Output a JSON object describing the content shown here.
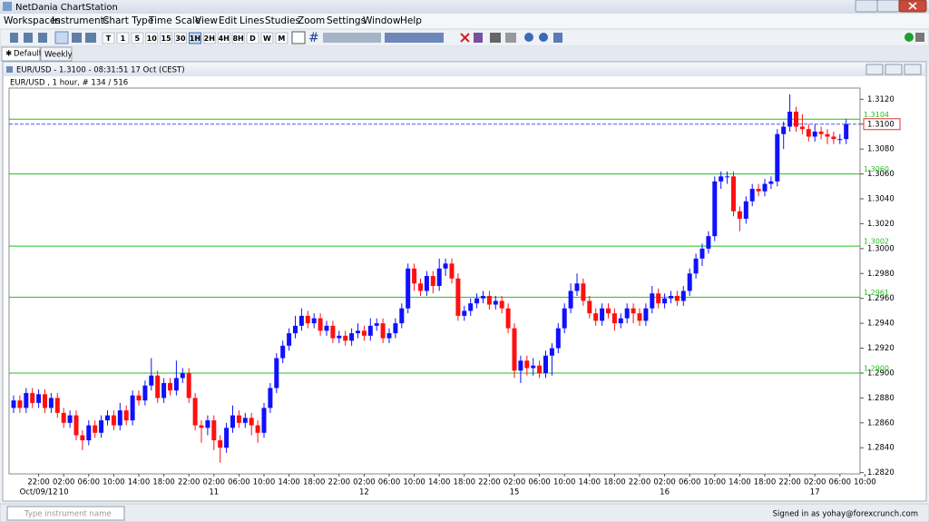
{
  "window": {
    "title": "NetDania ChartStation"
  },
  "menu": [
    "Workspaces",
    "Instruments",
    "Chart Type",
    "Time Scale",
    "View",
    "Edit",
    "Lines",
    "Studies",
    "Zoom",
    "Settings",
    "Window",
    "Help"
  ],
  "timeframes": [
    "T",
    "1",
    "5",
    "10",
    "15",
    "30",
    "1H",
    "2H",
    "4H",
    "8H",
    "D",
    "W",
    "M"
  ],
  "tabs": [
    "Default",
    "Weekly"
  ],
  "chart_window": {
    "title": "EUR/USD - 1.3100 - 08:31:51  17 Oct (CEST)"
  },
  "status": {
    "search_placeholder": "Type instrument name",
    "signed_in": "Signed in as yohay@forexcrunch.com"
  },
  "chart_data": {
    "type": "candlestick",
    "title": "EUR/USD , 1 hour, # 134 / 516",
    "up_color": "#1010ff",
    "down_color": "#ff1010",
    "line_color": "#22c022",
    "current_color": "#5050ff",
    "ylim": [
      1.2819,
      1.3129
    ],
    "yticks": [
      {
        "value": 1.282,
        "label": "1.2820"
      },
      {
        "value": 1.284,
        "label": "1.2840"
      },
      {
        "value": 1.286,
        "label": "1.2860"
      },
      {
        "value": 1.288,
        "label": "1.2880"
      },
      {
        "value": 1.29,
        "label": "1.2900"
      },
      {
        "value": 1.292,
        "label": "1.2920"
      },
      {
        "value": 1.294,
        "label": "1.2940"
      },
      {
        "value": 1.296,
        "label": "1.2960"
      },
      {
        "value": 1.298,
        "label": "1.2980"
      },
      {
        "value": 1.3,
        "label": "1.3000"
      },
      {
        "value": 1.302,
        "label": "1.3020"
      },
      {
        "value": 1.304,
        "label": "1.3040"
      },
      {
        "value": 1.306,
        "label": "1.3060"
      },
      {
        "value": 1.308,
        "label": "1.3080"
      },
      {
        "value": 1.31,
        "label": "1.3100"
      },
      {
        "value": 1.312,
        "label": "1.3120"
      }
    ],
    "levels": [
      1.3104,
      {
        "value": 1.306,
        "label": "1.3060"
      },
      1.3002,
      1.2961,
      {
        "value": 1.29,
        "label": "1.2900"
      }
    ],
    "current": {
      "value": 1.31,
      "label": "1.3100"
    },
    "xticks": [
      {
        "value": 4,
        "label": "22:00"
      },
      {
        "value": 8,
        "label": "02:00"
      },
      {
        "value": 12,
        "label": "06:00"
      },
      {
        "value": 16,
        "label": "10:00"
      },
      {
        "value": 20,
        "label": "14:00"
      },
      {
        "value": 24,
        "label": "18:00"
      },
      {
        "value": 28,
        "label": "22:00"
      },
      {
        "value": 32,
        "label": "02:00"
      },
      {
        "value": 36,
        "label": "06:00"
      },
      {
        "value": 40,
        "label": "10:00"
      },
      {
        "value": 44,
        "label": "14:00"
      },
      {
        "value": 48,
        "label": "18:00"
      },
      {
        "value": 52,
        "label": "22:00"
      },
      {
        "value": 56,
        "label": "02:00"
      },
      {
        "value": 60,
        "label": "06:00"
      },
      {
        "value": 64,
        "label": "10:00"
      },
      {
        "value": 68,
        "label": "14:00"
      },
      {
        "value": 72,
        "label": "18:00"
      },
      {
        "value": 76,
        "label": "22:00"
      },
      {
        "value": 80,
        "label": "02:00"
      },
      {
        "value": 84,
        "label": "06:00"
      },
      {
        "value": 88,
        "label": "10:00"
      },
      {
        "value": 92,
        "label": "14:00"
      },
      {
        "value": 96,
        "label": "18:00"
      },
      {
        "value": 100,
        "label": "22:00"
      },
      {
        "value": 104,
        "label": "02:00"
      },
      {
        "value": 108,
        "label": "06:00"
      },
      {
        "value": 112,
        "label": "10:00"
      },
      {
        "value": 116,
        "label": "14:00"
      },
      {
        "value": 120,
        "label": "18:00"
      },
      {
        "value": 124,
        "label": "22:00"
      },
      {
        "value": 128,
        "label": "02:00"
      },
      {
        "value": 132,
        "label": "06:00"
      },
      {
        "value": 136,
        "label": "10:00"
      }
    ],
    "date_ticks": [
      {
        "value": 4,
        "label": "Oct/09/12"
      },
      {
        "value": 8,
        "label": "10"
      },
      {
        "value": 32,
        "label": "11"
      },
      {
        "value": 56,
        "label": "12"
      },
      {
        "value": 80,
        "label": "15"
      },
      {
        "value": 104,
        "label": "16"
      },
      {
        "value": 128,
        "label": "17"
      }
    ],
    "candles": [
      [
        1.2872,
        1.2882,
        1.2868,
        1.2878
      ],
      [
        1.2878,
        1.2882,
        1.2868,
        1.2872
      ],
      [
        1.2872,
        1.2888,
        1.2868,
        1.2884
      ],
      [
        1.2884,
        1.2888,
        1.2872,
        1.2876
      ],
      [
        1.2876,
        1.2887,
        1.2872,
        1.2883
      ],
      [
        1.2883,
        1.2887,
        1.2868,
        1.2872
      ],
      [
        1.2872,
        1.2884,
        1.2868,
        1.288
      ],
      [
        1.288,
        1.2884,
        1.2864,
        1.2868
      ],
      [
        1.2868,
        1.2872,
        1.2856,
        1.286
      ],
      [
        1.286,
        1.287,
        1.2856,
        1.2866
      ],
      [
        1.2866,
        1.287,
        1.2846,
        1.285
      ],
      [
        1.285,
        1.2854,
        1.2838,
        1.2846
      ],
      [
        1.2846,
        1.2862,
        1.2842,
        1.2858
      ],
      [
        1.2858,
        1.2862,
        1.2848,
        1.2852
      ],
      [
        1.2852,
        1.2866,
        1.2848,
        1.2862
      ],
      [
        1.2862,
        1.287,
        1.2858,
        1.2866
      ],
      [
        1.2866,
        1.287,
        1.2854,
        1.2858
      ],
      [
        1.2858,
        1.2876,
        1.2854,
        1.287
      ],
      [
        1.287,
        1.2874,
        1.2858,
        1.2862
      ],
      [
        1.2862,
        1.2886,
        1.2858,
        1.2882
      ],
      [
        1.2882,
        1.2886,
        1.2874,
        1.2878
      ],
      [
        1.2878,
        1.2894,
        1.2874,
        1.289
      ],
      [
        1.289,
        1.2912,
        1.2886,
        1.2898
      ],
      [
        1.2898,
        1.2902,
        1.2876,
        1.288
      ],
      [
        1.288,
        1.2896,
        1.2876,
        1.2892
      ],
      [
        1.2892,
        1.2896,
        1.2882,
        1.2886
      ],
      [
        1.2886,
        1.291,
        1.2882,
        1.2896
      ],
      [
        1.2896,
        1.2904,
        1.2892,
        1.29
      ],
      [
        1.29,
        1.2904,
        1.2876,
        1.288
      ],
      [
        1.288,
        1.2884,
        1.2854,
        1.2858
      ],
      [
        1.2858,
        1.2862,
        1.2844,
        1.2856
      ],
      [
        1.2856,
        1.2866,
        1.285,
        1.2862
      ],
      [
        1.2862,
        1.2866,
        1.2838,
        1.2846
      ],
      [
        1.2846,
        1.285,
        1.2828,
        1.284
      ],
      [
        1.284,
        1.286,
        1.2836,
        1.2856
      ],
      [
        1.2856,
        1.2874,
        1.2852,
        1.2866
      ],
      [
        1.2866,
        1.287,
        1.2856,
        1.286
      ],
      [
        1.286,
        1.2868,
        1.2856,
        1.2864
      ],
      [
        1.2864,
        1.2868,
        1.285,
        1.2858
      ],
      [
        1.2858,
        1.2862,
        1.2844,
        1.2852
      ],
      [
        1.2852,
        1.2876,
        1.2848,
        1.2872
      ],
      [
        1.2872,
        1.2892,
        1.2868,
        1.2888
      ],
      [
        1.2888,
        1.2916,
        1.2884,
        1.2912
      ],
      [
        1.2912,
        1.2926,
        1.2908,
        1.2922
      ],
      [
        1.2922,
        1.2936,
        1.2918,
        1.2932
      ],
      [
        1.2932,
        1.2946,
        1.2928,
        1.2938
      ],
      [
        1.2938,
        1.2952,
        1.2934,
        1.2946
      ],
      [
        1.2946,
        1.295,
        1.2936,
        1.294
      ],
      [
        1.294,
        1.2948,
        1.2936,
        1.2944
      ],
      [
        1.2944,
        1.2948,
        1.293,
        1.2934
      ],
      [
        1.2934,
        1.2942,
        1.293,
        1.2938
      ],
      [
        1.2938,
        1.2942,
        1.2924,
        1.2928
      ],
      [
        1.2928,
        1.2934,
        1.2924,
        1.293
      ],
      [
        1.293,
        1.2934,
        1.2922,
        1.2926
      ],
      [
        1.2926,
        1.2936,
        1.2922,
        1.2932
      ],
      [
        1.2932,
        1.294,
        1.2928,
        1.2934
      ],
      [
        1.2934,
        1.2938,
        1.2926,
        1.293
      ],
      [
        1.293,
        1.2944,
        1.2926,
        1.2938
      ],
      [
        1.2938,
        1.2944,
        1.2934,
        1.294
      ],
      [
        1.294,
        1.2944,
        1.2924,
        1.2928
      ],
      [
        1.2928,
        1.2936,
        1.2924,
        1.2932
      ],
      [
        1.2932,
        1.2944,
        1.2928,
        1.294
      ],
      [
        1.294,
        1.2956,
        1.2936,
        1.2952
      ],
      [
        1.2952,
        1.2988,
        1.2948,
        1.2984
      ],
      [
        1.2984,
        1.2988,
        1.2966,
        1.2972
      ],
      [
        1.2972,
        1.2976,
        1.2962,
        1.2966
      ],
      [
        1.2966,
        1.2982,
        1.2962,
        1.2978
      ],
      [
        1.2978,
        1.2982,
        1.2964,
        1.297
      ],
      [
        1.297,
        1.2992,
        1.2966,
        1.2984
      ],
      [
        1.2984,
        1.2992,
        1.2978,
        1.2988
      ],
      [
        1.2988,
        1.2992,
        1.2972,
        1.2976
      ],
      [
        1.2976,
        1.298,
        1.2942,
        1.2946
      ],
      [
        1.2946,
        1.2954,
        1.2942,
        1.295
      ],
      [
        1.295,
        1.296,
        1.2946,
        1.2956
      ],
      [
        1.2956,
        1.2964,
        1.2952,
        1.296
      ],
      [
        1.296,
        1.2966,
        1.2956,
        1.2962
      ],
      [
        1.2962,
        1.2966,
        1.2951,
        1.2955
      ],
      [
        1.2955,
        1.2962,
        1.2951,
        1.2958
      ],
      [
        1.2958,
        1.2962,
        1.2948,
        1.2952
      ],
      [
        1.2952,
        1.2956,
        1.2932,
        1.2936
      ],
      [
        1.2936,
        1.294,
        1.2896,
        1.2902
      ],
      [
        1.2902,
        1.2914,
        1.2892,
        1.291
      ],
      [
        1.291,
        1.2914,
        1.2898,
        1.2904
      ],
      [
        1.2904,
        1.2912,
        1.2898,
        1.2906
      ],
      [
        1.2906,
        1.291,
        1.2896,
        1.29
      ],
      [
        1.29,
        1.2918,
        1.2896,
        1.2914
      ],
      [
        1.2914,
        1.2924,
        1.2898,
        1.292
      ],
      [
        1.292,
        1.294,
        1.2916,
        1.2936
      ],
      [
        1.2936,
        1.2956,
        1.2932,
        1.2952
      ],
      [
        1.2952,
        1.2972,
        1.2948,
        1.2966
      ],
      [
        1.2966,
        1.298,
        1.2962,
        1.2972
      ],
      [
        1.2972,
        1.2976,
        1.2954,
        1.2958
      ],
      [
        1.2958,
        1.2962,
        1.2944,
        1.2948
      ],
      [
        1.2948,
        1.2952,
        1.2938,
        1.2942
      ],
      [
        1.2942,
        1.2956,
        1.2938,
        1.2952
      ],
      [
        1.2952,
        1.2956,
        1.2944,
        1.2948
      ],
      [
        1.2948,
        1.2952,
        1.2934,
        1.294
      ],
      [
        1.294,
        1.2948,
        1.2936,
        1.2944
      ],
      [
        1.2944,
        1.2956,
        1.294,
        1.2952
      ],
      [
        1.2952,
        1.2956,
        1.294,
        1.2948
      ],
      [
        1.2948,
        1.2952,
        1.2938,
        1.2942
      ],
      [
        1.2942,
        1.2956,
        1.2938,
        1.2952
      ],
      [
        1.2952,
        1.297,
        1.2948,
        1.2964
      ],
      [
        1.2964,
        1.2968,
        1.2952,
        1.2956
      ],
      [
        1.2956,
        1.2964,
        1.2952,
        1.296
      ],
      [
        1.296,
        1.2966,
        1.2956,
        1.2962
      ],
      [
        1.2962,
        1.2966,
        1.2954,
        1.2958
      ],
      [
        1.2958,
        1.297,
        1.2954,
        1.2966
      ],
      [
        1.2966,
        1.2984,
        1.2962,
        1.298
      ],
      [
        1.298,
        1.2996,
        1.2976,
        1.2992
      ],
      [
        1.2992,
        1.3004,
        1.2986,
        1.3
      ],
      [
        1.3,
        1.3014,
        1.2996,
        1.301
      ],
      [
        1.301,
        1.3058,
        1.3006,
        1.3054
      ],
      [
        1.3054,
        1.3062,
        1.3048,
        1.3058
      ],
      [
        1.3058,
        1.3062,
        1.3052,
        1.3058
      ],
      [
        1.3058,
        1.3062,
        1.3026,
        1.303
      ],
      [
        1.303,
        1.3034,
        1.3014,
        1.3024
      ],
      [
        1.3024,
        1.3042,
        1.302,
        1.3038
      ],
      [
        1.3038,
        1.3052,
        1.3034,
        1.3048
      ],
      [
        1.3048,
        1.3052,
        1.3042,
        1.3046
      ],
      [
        1.3046,
        1.3056,
        1.3042,
        1.3052
      ],
      [
        1.3052,
        1.3058,
        1.3048,
        1.3054
      ],
      [
        1.3054,
        1.3096,
        1.305,
        1.3092
      ],
      [
        1.3092,
        1.3102,
        1.308,
        1.3098
      ],
      [
        1.3098,
        1.3124,
        1.3094,
        1.311
      ],
      [
        1.311,
        1.3114,
        1.3094,
        1.3098
      ],
      [
        1.3098,
        1.3108,
        1.3092,
        1.3096
      ],
      [
        1.3096,
        1.31,
        1.3086,
        1.309
      ],
      [
        1.309,
        1.31,
        1.3086,
        1.3094
      ],
      [
        1.3094,
        1.3098,
        1.3088,
        1.3092
      ],
      [
        1.3092,
        1.3096,
        1.3084,
        1.309
      ],
      [
        1.309,
        1.3094,
        1.3084,
        1.3088
      ],
      [
        1.3088,
        1.3092,
        1.3084,
        1.3088
      ],
      [
        1.3088,
        1.3104,
        1.3084,
        1.31
      ]
    ]
  }
}
